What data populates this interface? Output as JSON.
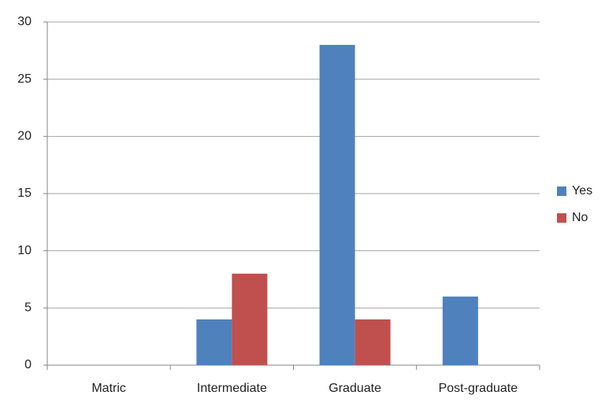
{
  "chart_data": {
    "type": "bar",
    "categories": [
      "Matric",
      "Intermediate",
      "Graduate",
      "Post-graduate"
    ],
    "series": [
      {
        "name": "Yes",
        "color": "#4f81bd",
        "values": [
          0,
          4,
          28,
          6
        ]
      },
      {
        "name": "No",
        "color": "#c0504d",
        "values": [
          0,
          8,
          4,
          0
        ]
      }
    ],
    "ylim": [
      0,
      30
    ],
    "yticks": [
      0,
      5,
      10,
      15,
      20,
      25,
      30
    ],
    "grid": true,
    "legend": "right"
  }
}
